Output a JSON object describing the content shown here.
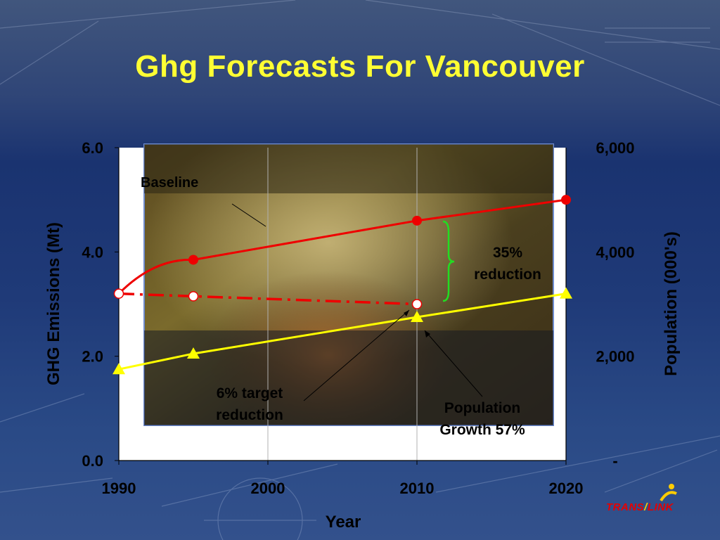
{
  "slide": {
    "title": "Ghg Forecasts For Vancouver",
    "logo_text_left": "TRANS",
    "logo_text_right": "LINK",
    "accent_color": "#ffff33"
  },
  "chart_data": {
    "type": "line",
    "title": "Ghg Forecasts For Vancouver",
    "xlabel": "Year",
    "ylabel": "GHG Emissions (Mt)",
    "y2label": "Population (000's)",
    "x_ticks": [
      "1990",
      "2000",
      "2010",
      "2020"
    ],
    "y_ticks": [
      "0.0",
      "2.0",
      "4.0",
      "6.0"
    ],
    "y2_ticks": [
      "-",
      "2,000",
      "4,000",
      "6,000"
    ],
    "xlim": [
      1990,
      2020
    ],
    "ylim": [
      0,
      6
    ],
    "y2lim": [
      0,
      6000
    ],
    "series": [
      {
        "name": "Baseline",
        "axis": "left",
        "color": "#ee0000",
        "style": "solid",
        "marker": "circle-filled",
        "x": [
          1990,
          1995,
          2010,
          2020
        ],
        "y": [
          3.2,
          3.85,
          4.6,
          5.0
        ]
      },
      {
        "name": "6% target reduction",
        "axis": "left",
        "color": "#ee0000",
        "style": "dash-dot",
        "marker": "circle-open",
        "x": [
          1990,
          1995,
          2010
        ],
        "y": [
          3.2,
          3.15,
          3.0
        ]
      },
      {
        "name": "Population Growth 57%",
        "axis": "right",
        "color": "#ffff00",
        "style": "solid",
        "marker": "triangle",
        "x": [
          1990,
          1995,
          2010,
          2020
        ],
        "y": [
          1750,
          2050,
          2750,
          3200
        ]
      }
    ],
    "annotations": [
      {
        "text": "Baseline"
      },
      {
        "text_lines": [
          "35%",
          "reduction"
        ]
      },
      {
        "text_lines": [
          "6% target",
          "reduction"
        ]
      },
      {
        "text_lines": [
          "Population",
          "Growth 57%"
        ]
      }
    ],
    "grid": "vertical"
  }
}
